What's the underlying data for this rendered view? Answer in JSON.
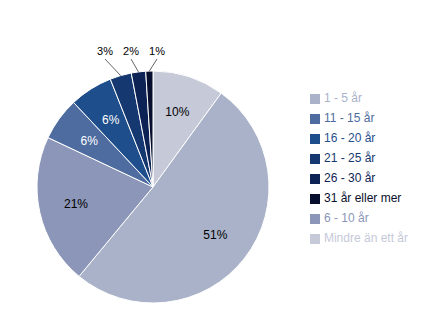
{
  "chart_data": {
    "type": "pie",
    "categories": [
      "Mindre än ett år",
      "1 - 5 år",
      "6 - 10 år",
      "11 - 15 år",
      "16 - 20 år",
      "21 - 25 år",
      "26 - 30 år",
      "31 år eller mer"
    ],
    "values": [
      10,
      51,
      21,
      6,
      6,
      3,
      2,
      1
    ],
    "value_labels": [
      "10%",
      "51%",
      "21%",
      "6%",
      "6%",
      "3%",
      "2%",
      "1%"
    ],
    "colors": [
      "#c5c9d8",
      "#a9b2c8",
      "#8b96b8",
      "#4e6ca0",
      "#1f4e8c",
      "#163870",
      "#0d2255",
      "#080f2e"
    ],
    "data_labels": true,
    "legend": "right"
  }
}
